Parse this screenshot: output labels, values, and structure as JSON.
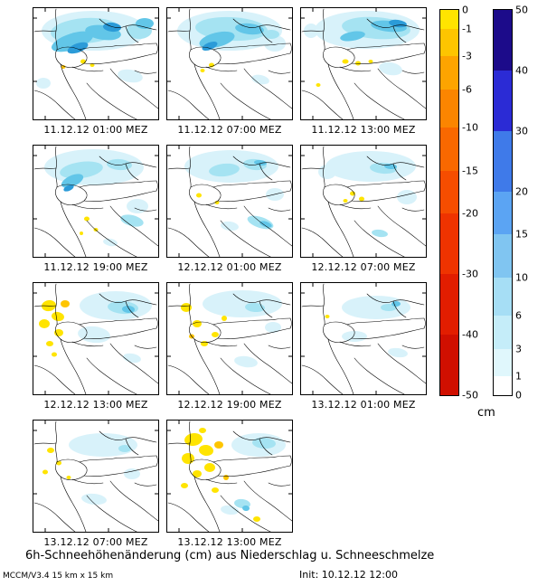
{
  "title": "6h-Schneehöhenänderung (cm) aus Niederschlag u. Schneeschmelze",
  "footer": {
    "model": "MCCM/V3.4 15 km x 15 km",
    "init": "Init: 10.12.12 12:00"
  },
  "colorbars": {
    "unit": "cm",
    "negative": {
      "ticks": [
        0,
        -1,
        -3,
        -6,
        -10,
        -15,
        -20,
        -30,
        -40,
        -50
      ],
      "colors": [
        "#ffe400",
        "#fdc500",
        "#fda400",
        "#fb8500",
        "#f96800",
        "#f64d00",
        "#ef3300",
        "#e21d00",
        "#d00f00"
      ]
    },
    "positive": {
      "ticks": [
        50,
        40,
        30,
        20,
        15,
        10,
        6,
        3,
        1,
        0
      ],
      "colors": [
        "#1c0b8a",
        "#2b2bd5",
        "#3f7ae9",
        "#5ba4f3",
        "#80c5f1",
        "#a6def5",
        "#c5edf9",
        "#e0f7fc",
        "#ffffff"
      ]
    }
  },
  "palette": {
    "pale": "#d8f2fa",
    "cyan": "#a5e3f2",
    "mid": "#62c6e8",
    "blue": "#2b9bd8",
    "yellow": "#ffe400",
    "gold": "#fec500"
  },
  "panels": [
    {
      "label": "11.12.12 01:00 MEZ",
      "patches": [
        [
          68,
          26,
          58,
          22,
          "pale",
          0
        ],
        [
          58,
          26,
          38,
          14,
          "cyan",
          -4
        ],
        [
          44,
          38,
          24,
          9,
          "mid",
          -18
        ],
        [
          78,
          28,
          20,
          8,
          "mid",
          8
        ],
        [
          50,
          45,
          12,
          5,
          "blue",
          -20
        ],
        [
          88,
          22,
          10,
          5,
          "blue",
          5
        ],
        [
          118,
          26,
          14,
          9,
          "cyan",
          0
        ],
        [
          124,
          18,
          10,
          6,
          "mid",
          0
        ],
        [
          108,
          76,
          14,
          7,
          "pale",
          10
        ],
        [
          12,
          84,
          8,
          6,
          "pale",
          0
        ],
        [
          56,
          60,
          3,
          2.5,
          "yellow",
          0
        ],
        [
          66,
          64,
          2.5,
          2,
          "yellow",
          0
        ],
        [
          34,
          66,
          2.5,
          2,
          "gold",
          0
        ]
      ]
    },
    {
      "label": "11.12.12 07:00 MEZ",
      "patches": [
        [
          70,
          26,
          58,
          22,
          "pale",
          0
        ],
        [
          72,
          24,
          40,
          13,
          "cyan",
          3
        ],
        [
          56,
          36,
          20,
          8,
          "mid",
          -14
        ],
        [
          92,
          24,
          16,
          6,
          "mid",
          6
        ],
        [
          48,
          43,
          9,
          4,
          "blue",
          -22
        ],
        [
          120,
          40,
          12,
          9,
          "pale",
          0
        ],
        [
          116,
          30,
          9,
          5,
          "cyan",
          0
        ],
        [
          50,
          64,
          3,
          2.5,
          "yellow",
          0
        ],
        [
          40,
          70,
          2.5,
          2,
          "yellow",
          0
        ],
        [
          104,
          80,
          10,
          5,
          "pale",
          12
        ]
      ]
    },
    {
      "label": "11.12.12 13:00 MEZ",
      "patches": [
        [
          74,
          25,
          58,
          21,
          "pale",
          0
        ],
        [
          84,
          23,
          38,
          12,
          "cyan",
          4
        ],
        [
          98,
          21,
          20,
          6,
          "mid",
          6
        ],
        [
          108,
          18,
          10,
          4,
          "blue",
          8
        ],
        [
          58,
          32,
          14,
          5,
          "mid",
          -10
        ],
        [
          100,
          68,
          13,
          7,
          "pale",
          10
        ],
        [
          50,
          60,
          3.5,
          2.5,
          "yellow",
          0
        ],
        [
          64,
          62,
          3,
          2.5,
          "yellow",
          0
        ],
        [
          78,
          60,
          2.5,
          2,
          "yellow",
          0
        ],
        [
          20,
          86,
          2.5,
          2,
          "yellow",
          0
        ],
        [
          12,
          26,
          8,
          8,
          "pale",
          0
        ]
      ]
    },
    {
      "label": "11.12.12 19:00 MEZ",
      "patches": [
        [
          68,
          25,
          55,
          20,
          "pale",
          0
        ],
        [
          54,
          28,
          24,
          9,
          "cyan",
          -8
        ],
        [
          44,
          40,
          13,
          6,
          "mid",
          -24
        ],
        [
          40,
          48,
          6,
          3,
          "blue",
          -24
        ],
        [
          96,
          22,
          14,
          6,
          "cyan",
          4
        ],
        [
          116,
          68,
          12,
          8,
          "pale",
          0
        ],
        [
          110,
          84,
          13,
          6,
          "cyan",
          14
        ],
        [
          60,
          82,
          3,
          2.5,
          "yellow",
          0
        ],
        [
          70,
          94,
          2.5,
          2,
          "yellow",
          0
        ],
        [
          54,
          98,
          2,
          2,
          "yellow",
          0
        ],
        [
          86,
          108,
          8,
          4,
          "pale",
          10
        ]
      ]
    },
    {
      "label": "12.12.12 01:00 MEZ",
      "patches": [
        [
          72,
          24,
          52,
          18,
          "pale",
          0
        ],
        [
          64,
          28,
          17,
          7,
          "cyan",
          -6
        ],
        [
          98,
          22,
          13,
          6,
          "cyan",
          6
        ],
        [
          104,
          20,
          7,
          3,
          "mid",
          6
        ],
        [
          36,
          56,
          3,
          2.5,
          "yellow",
          0
        ],
        [
          56,
          64,
          2.5,
          2,
          "yellow",
          0
        ],
        [
          104,
          86,
          15,
          6,
          "cyan",
          18
        ],
        [
          110,
          88,
          7,
          3,
          "mid",
          18
        ],
        [
          120,
          55,
          10,
          7,
          "pale",
          0
        ],
        [
          70,
          90,
          10,
          5,
          "pale",
          8
        ]
      ]
    },
    {
      "label": "12.12.12 07:00 MEZ",
      "patches": [
        [
          78,
          24,
          50,
          17,
          "pale",
          0
        ],
        [
          92,
          26,
          15,
          6,
          "cyan",
          4
        ],
        [
          100,
          24,
          7,
          3,
          "mid",
          4
        ],
        [
          118,
          58,
          11,
          8,
          "pale",
          0
        ],
        [
          58,
          54,
          3,
          2.5,
          "yellow",
          0
        ],
        [
          68,
          60,
          3,
          2.5,
          "yellow",
          0
        ],
        [
          50,
          62,
          2.5,
          2,
          "yellow",
          0
        ],
        [
          88,
          98,
          9,
          4,
          "cyan",
          8
        ],
        [
          30,
          30,
          10,
          8,
          "pale",
          0
        ]
      ]
    },
    {
      "label": "12.12.12 13:00 MEZ",
      "patches": [
        [
          92,
          26,
          40,
          16,
          "pale",
          0
        ],
        [
          100,
          28,
          17,
          7,
          "cyan",
          4
        ],
        [
          106,
          30,
          7,
          4,
          "mid",
          4
        ],
        [
          68,
          58,
          18,
          9,
          "pale",
          6
        ],
        [
          18,
          26,
          8,
          6,
          "yellow",
          -10
        ],
        [
          28,
          38,
          7,
          5,
          "yellow",
          10
        ],
        [
          13,
          46,
          6,
          5,
          "yellow",
          0
        ],
        [
          29,
          56,
          5,
          4,
          "yellow",
          0
        ],
        [
          19,
          68,
          4,
          3,
          "yellow",
          0
        ],
        [
          36,
          24,
          5,
          4,
          "gold",
          0
        ],
        [
          24,
          80,
          3,
          2.5,
          "yellow",
          0
        ],
        [
          110,
          84,
          10,
          5,
          "pale",
          10
        ]
      ]
    },
    {
      "label": "12.12.12 19:00 MEZ",
      "patches": [
        [
          84,
          24,
          44,
          15,
          "pale",
          0
        ],
        [
          98,
          28,
          11,
          5,
          "cyan",
          4
        ],
        [
          22,
          28,
          6,
          5,
          "yellow",
          0
        ],
        [
          34,
          46,
          5,
          4,
          "yellow",
          0
        ],
        [
          54,
          58,
          4,
          3,
          "yellow",
          0
        ],
        [
          42,
          68,
          4,
          3,
          "yellow",
          0
        ],
        [
          64,
          40,
          3,
          3,
          "yellow",
          0
        ],
        [
          28,
          60,
          3,
          2.5,
          "gold",
          0
        ],
        [
          88,
          88,
          13,
          6,
          "pale",
          8
        ],
        [
          118,
          50,
          9,
          6,
          "pale",
          0
        ]
      ]
    },
    {
      "label": "13.12.12 01:00 MEZ",
      "patches": [
        [
          84,
          28,
          38,
          13,
          "pale",
          0
        ],
        [
          98,
          28,
          9,
          4,
          "cyan",
          0
        ],
        [
          106,
          24,
          5,
          3,
          "mid",
          0
        ],
        [
          108,
          78,
          11,
          5,
          "pale",
          8
        ],
        [
          30,
          38,
          2.5,
          2,
          "yellow",
          0
        ],
        [
          60,
          60,
          14,
          6,
          "pale",
          0
        ]
      ]
    },
    {
      "label": "13.12.12 07:00 MEZ",
      "patches": [
        [
          78,
          28,
          38,
          13,
          "pale",
          0
        ],
        [
          102,
          32,
          7,
          4,
          "cyan",
          0
        ],
        [
          20,
          34,
          4,
          3,
          "yellow",
          0
        ],
        [
          29,
          48,
          3,
          2.5,
          "yellow",
          0
        ],
        [
          14,
          58,
          3,
          2.5,
          "yellow",
          0
        ],
        [
          40,
          64,
          2.5,
          2,
          "yellow",
          0
        ],
        [
          68,
          88,
          14,
          6,
          "pale",
          6
        ],
        [
          110,
          60,
          9,
          6,
          "pale",
          0
        ]
      ]
    },
    {
      "label": "13.12.12 13:00 MEZ",
      "patches": [
        [
          102,
          28,
          30,
          13,
          "pale",
          0
        ],
        [
          108,
          26,
          13,
          6,
          "cyan",
          4
        ],
        [
          30,
          22,
          10,
          7,
          "yellow",
          -8
        ],
        [
          44,
          34,
          8,
          6,
          "yellow",
          8
        ],
        [
          24,
          43,
          7,
          6,
          "yellow",
          0
        ],
        [
          48,
          53,
          6,
          5,
          "yellow",
          0
        ],
        [
          34,
          60,
          5,
          4,
          "yellow",
          0
        ],
        [
          58,
          28,
          5,
          4,
          "gold",
          0
        ],
        [
          20,
          73,
          4,
          3,
          "yellow",
          0
        ],
        [
          54,
          78,
          4,
          3,
          "yellow",
          0
        ],
        [
          40,
          12,
          4,
          3,
          "yellow",
          0
        ],
        [
          66,
          64,
          3,
          3,
          "gold",
          0
        ],
        [
          84,
          93,
          9,
          5,
          "cyan",
          8
        ],
        [
          88,
          98,
          4,
          3,
          "mid",
          8
        ],
        [
          100,
          110,
          4,
          3,
          "yellow",
          0
        ],
        [
          70,
          100,
          10,
          5,
          "pale",
          8
        ]
      ]
    }
  ]
}
